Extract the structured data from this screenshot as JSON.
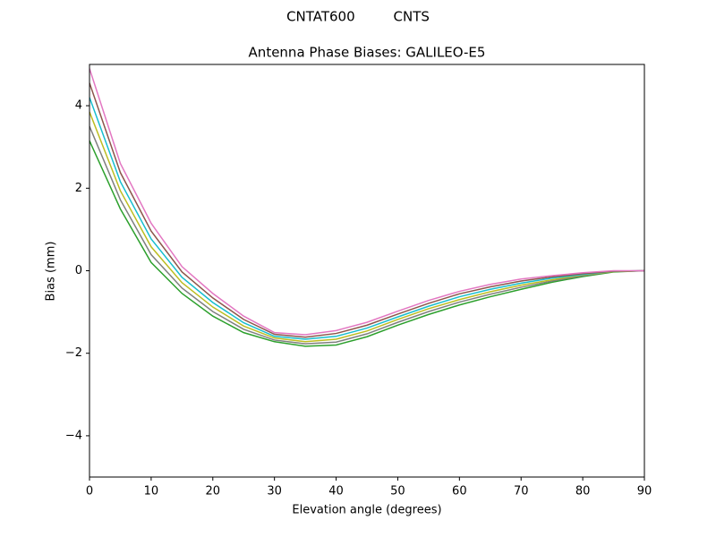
{
  "chart_data": {
    "type": "line",
    "suptitle": "CNTAT600         CNTS",
    "title": "Antenna Phase Biases: GALILEO-E5",
    "x_label": "Elevation angle (degrees)",
    "y_label": "Bias (mm)",
    "x": [
      0,
      5,
      10,
      15,
      20,
      25,
      30,
      35,
      40,
      45,
      50,
      55,
      60,
      65,
      70,
      75,
      80,
      85,
      90
    ],
    "series": [
      {
        "color": "#2ca02c",
        "values": [
          3.15,
          1.5,
          0.2,
          -0.55,
          -1.1,
          -1.5,
          -1.72,
          -1.83,
          -1.8,
          -1.6,
          -1.32,
          -1.06,
          -0.83,
          -0.63,
          -0.45,
          -0.28,
          -0.14,
          -0.03,
          0
        ]
      },
      {
        "color": "#7f7f7f",
        "values": [
          3.5,
          1.72,
          0.39,
          -0.42,
          -0.99,
          -1.42,
          -1.68,
          -1.77,
          -1.73,
          -1.53,
          -1.25,
          -0.99,
          -0.76,
          -0.57,
          -0.4,
          -0.25,
          -0.12,
          -0.02,
          0
        ]
      },
      {
        "color": "#bcbd22",
        "values": [
          3.85,
          1.94,
          0.58,
          -0.29,
          -0.88,
          -1.34,
          -1.63,
          -1.72,
          -1.66,
          -1.46,
          -1.18,
          -0.92,
          -0.7,
          -0.51,
          -0.35,
          -0.22,
          -0.1,
          -0.02,
          0
        ]
      },
      {
        "color": "#17becf",
        "values": [
          4.2,
          2.16,
          0.77,
          -0.16,
          -0.77,
          -1.26,
          -1.59,
          -1.66,
          -1.59,
          -1.39,
          -1.12,
          -0.86,
          -0.63,
          -0.45,
          -0.3,
          -0.18,
          -0.09,
          -0.01,
          0
        ]
      },
      {
        "color": "#8c564b",
        "values": [
          4.55,
          2.38,
          0.96,
          -0.03,
          -0.66,
          -1.18,
          -1.54,
          -1.61,
          -1.52,
          -1.32,
          -1.05,
          -0.79,
          -0.56,
          -0.39,
          -0.25,
          -0.15,
          -0.07,
          -0.01,
          0
        ]
      },
      {
        "color": "#e377c2",
        "values": [
          4.9,
          2.6,
          1.15,
          0.1,
          -0.55,
          -1.1,
          -1.5,
          -1.55,
          -1.45,
          -1.25,
          -0.98,
          -0.72,
          -0.5,
          -0.33,
          -0.2,
          -0.12,
          -0.05,
          0,
          0
        ]
      }
    ],
    "xlim": [
      0,
      90
    ],
    "xticks": [
      0,
      10,
      20,
      30,
      40,
      50,
      60,
      70,
      80,
      90
    ],
    "ylim": [
      -5,
      5
    ],
    "yticks": [
      {
        "value": -4,
        "label": "−4"
      },
      {
        "value": -2,
        "label": "−2"
      },
      0,
      2,
      4
    ],
    "grid": false
  }
}
